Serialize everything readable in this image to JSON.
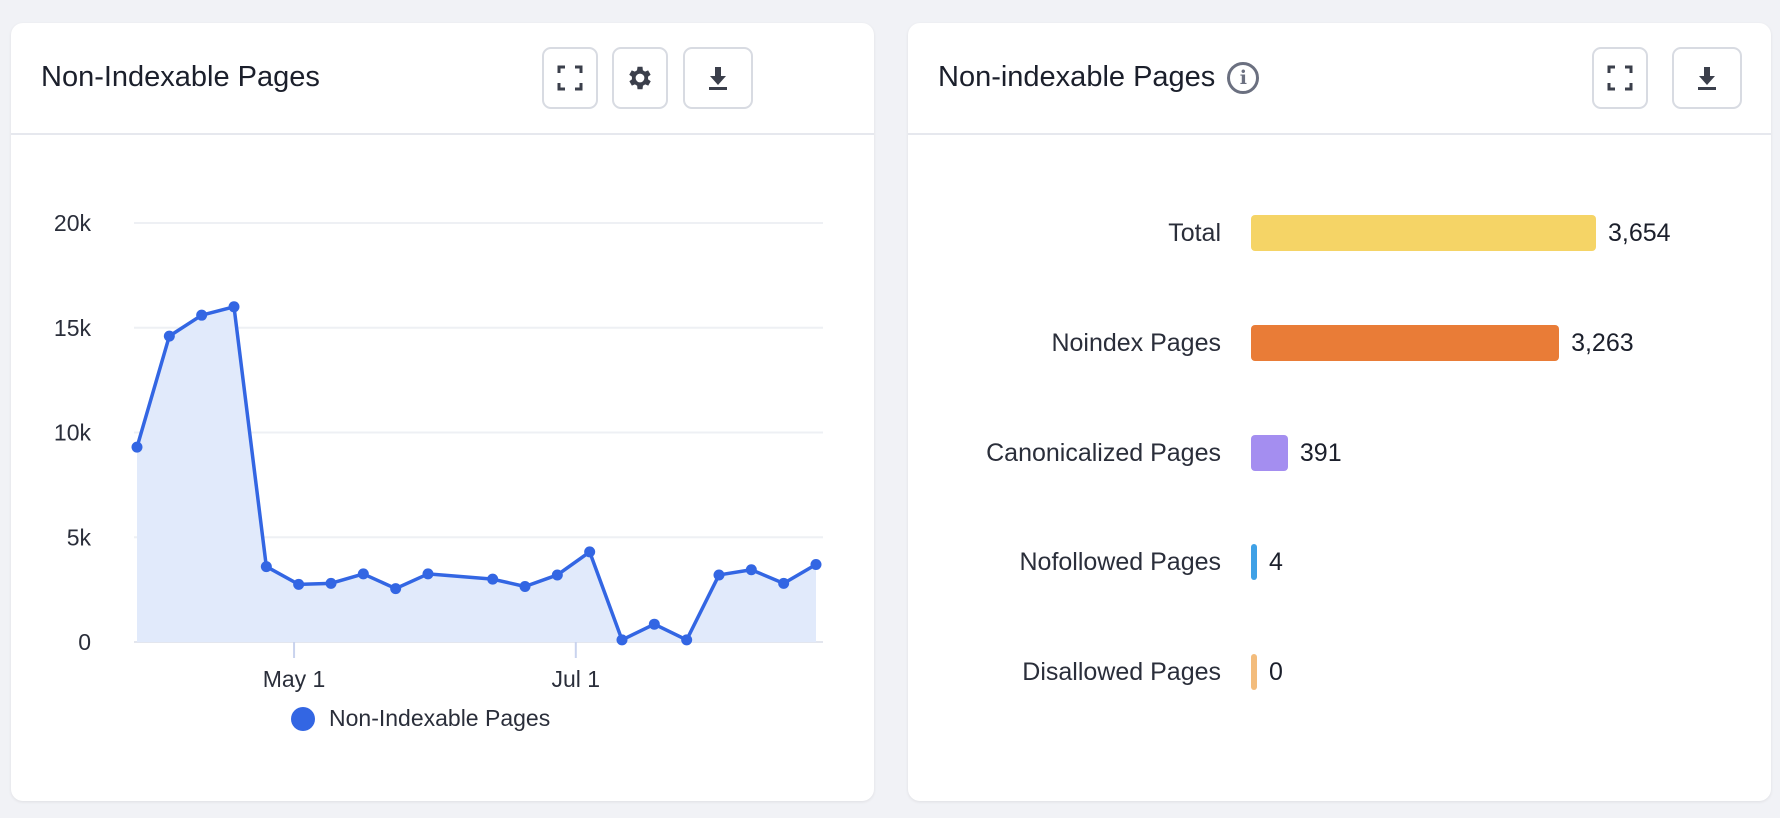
{
  "left_card": {
    "title": "Non-Indexable Pages",
    "buttons": [
      {
        "icon": "expand-icon"
      },
      {
        "icon": "gear-icon"
      },
      {
        "icon": "download-icon"
      }
    ],
    "legend_label": "Non-Indexable Pages"
  },
  "right_card": {
    "title": "Non-indexable Pages",
    "buttons": [
      {
        "icon": "expand-icon"
      },
      {
        "icon": "download-icon"
      }
    ]
  },
  "chart_data": [
    {
      "type": "area",
      "series": [
        {
          "name": "Non-Indexable Pages",
          "color": "#3366e3",
          "x": [
            "Mar 28",
            "Apr 4",
            "Apr 11",
            "Apr 18",
            "Apr 25",
            "May 2",
            "May 9",
            "May 16",
            "May 23",
            "May 30",
            "Jun 13",
            "Jun 20",
            "Jun 27",
            "Jul 4",
            "Jul 11",
            "Jul 18",
            "Jul 25",
            "Aug 1",
            "Aug 8",
            "Aug 15",
            "Aug 22"
          ],
          "values": [
            9300,
            14600,
            15600,
            16000,
            3600,
            2750,
            2800,
            3250,
            2550,
            3250,
            3000,
            2650,
            3200,
            4300,
            100,
            850,
            100,
            3200,
            3450,
            2800,
            3700
          ]
        }
      ],
      "yticks": [
        "0",
        "5k",
        "10k",
        "15k",
        "20k"
      ],
      "ylim": [
        0,
        20000
      ],
      "xticks": [
        {
          "label": "May 1",
          "date": "May 1"
        },
        {
          "label": "Jul 1",
          "date": "Jul 1"
        }
      ],
      "grid": true,
      "legend": "bottom"
    },
    {
      "type": "bar",
      "orientation": "horizontal",
      "categories": [
        "Total",
        "Noindex Pages",
        "Canonicalized Pages",
        "Nofollowed Pages",
        "Disallowed Pages"
      ],
      "values": [
        3654,
        3263,
        391,
        4,
        0
      ],
      "value_labels": [
        "3,654",
        "3,263",
        "391",
        "4",
        "0"
      ],
      "colors": [
        "#f5d466",
        "#e97c37",
        "#a48ef0",
        "#3fa1e6",
        "#f3bc7c"
      ]
    }
  ]
}
